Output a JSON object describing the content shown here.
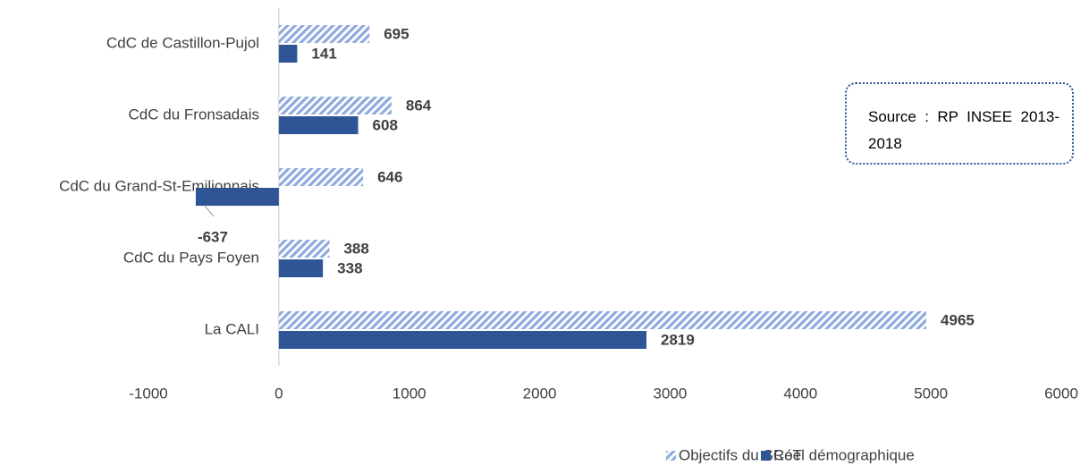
{
  "chart_data": {
    "type": "bar",
    "orientation": "horizontal",
    "categories": [
      "CdC de Castillon-Pujol",
      "CdC du Fronsadais",
      "CdC du Grand-St-Emilionnais",
      "CdC du Pays Foyen",
      "La CALI"
    ],
    "series": [
      {
        "name": "Objectifs du SCoT",
        "color": "#8faadc",
        "pattern": "hatched",
        "values": [
          695,
          864,
          646,
          388,
          4965
        ]
      },
      {
        "name": "Réel démographique",
        "color": "#2f5597",
        "values": [
          141,
          608,
          -637,
          338,
          2819
        ]
      }
    ],
    "xlim": [
      -1000,
      6000
    ],
    "xticks": [
      -1000,
      0,
      1000,
      2000,
      3000,
      4000,
      5000,
      6000
    ],
    "annotation": "Source : RP INSEE 2013-2018",
    "legend": "bottom"
  }
}
